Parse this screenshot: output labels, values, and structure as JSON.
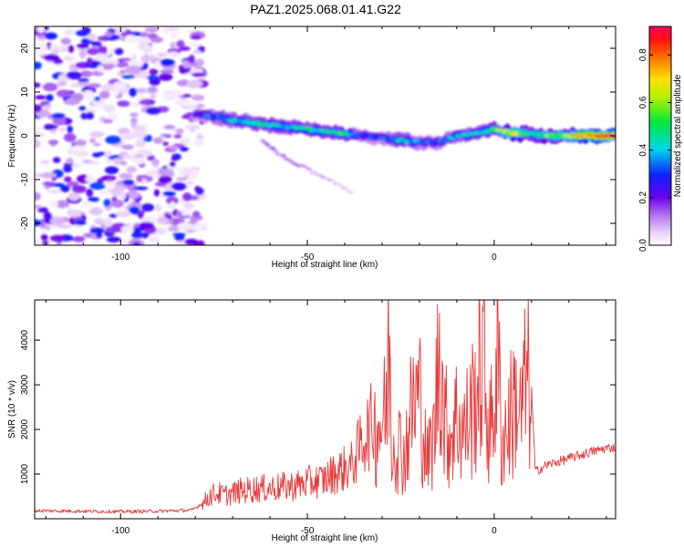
{
  "chart_data": [
    {
      "type": "heatmap",
      "title": "PAZ1.2025.068.01.41.G22",
      "xlabel": "Height of straight line (km)",
      "ylabel": "Frequency (Hz)",
      "xlim": [
        -123,
        32.5
      ],
      "ylim": [
        -25,
        25
      ],
      "xticks": [
        -100,
        -50,
        0
      ],
      "xtick_labels": [
        "-100",
        "-50",
        "0"
      ],
      "yticks": [
        -20,
        -10,
        0,
        10,
        20
      ],
      "ytick_labels": [
        "-20",
        "-10",
        "0",
        "10",
        "20"
      ],
      "colorbar": {
        "label": "Normalized spectral amplitude",
        "range": [
          0,
          0.92
        ],
        "ticks": [
          0.0,
          0.2,
          0.4,
          0.6,
          0.8
        ],
        "tick_labels": [
          "0.0",
          "0.2",
          "0.4",
          "0.6",
          "0.8"
        ],
        "colormap": "rainbow (white-purple-blue-cyan-green-yellow-red-magenta)"
      },
      "noise_region_x": [
        -123,
        -78
      ],
      "main_signal_ridge": {
        "x": [
          -80,
          -75,
          -70,
          -65,
          -60,
          -55,
          -50,
          -45,
          -40,
          -35,
          -30,
          -25,
          -20,
          -15,
          -10,
          -5,
          0,
          5,
          10,
          15,
          20,
          25,
          30,
          32
        ],
        "y": [
          5,
          4.5,
          3.5,
          3,
          2.5,
          2,
          1.5,
          1,
          0.5,
          0,
          -0.5,
          -1,
          -1.5,
          -1.5,
          0,
          0.5,
          1.5,
          0.5,
          0.5,
          0,
          0,
          0,
          0,
          0
        ],
        "amplitude": [
          0.25,
          0.35,
          0.4,
          0.42,
          0.45,
          0.45,
          0.45,
          0.45,
          0.5,
          0.3,
          0.3,
          0.45,
          0.35,
          0.3,
          0.4,
          0.4,
          0.5,
          0.7,
          0.5,
          0.6,
          0.6,
          0.85,
          0.9,
          0.9
        ]
      },
      "secondary_branch": {
        "x": [
          -62,
          -58,
          -54,
          -50,
          -46,
          -42,
          -38
        ],
        "y": [
          -1,
          -4,
          -6,
          -7.5,
          -9.5,
          -11,
          -13
        ],
        "amplitude": [
          0.15,
          0.15,
          0.12,
          0.1,
          0.1,
          0.08,
          0.06
        ]
      }
    },
    {
      "type": "line",
      "xlabel": "Height of straight line (km)",
      "ylabel": "SNR (10 * v/v)",
      "xlim": [
        -123,
        32.5
      ],
      "ylim": [
        0,
        4900
      ],
      "xticks": [
        -100,
        -50,
        0
      ],
      "xtick_labels": [
        "-100",
        "-50",
        "0"
      ],
      "yticks": [
        1000,
        2000,
        3000,
        4000
      ],
      "ytick_labels": [
        "1000",
        "2000",
        "3000",
        "4000"
      ],
      "color": "#e8393a",
      "x": [
        -123,
        -110,
        -100,
        -90,
        -81,
        -78,
        -76,
        -74,
        -72,
        -68,
        -64,
        -60,
        -56,
        -52,
        -50,
        -46,
        -42,
        -38,
        -35,
        -32,
        -30,
        -29,
        -28,
        -27.5,
        -26,
        -24,
        -22,
        -20,
        -18,
        -16,
        -14.5,
        -13.5,
        -12,
        -10,
        -8,
        -6,
        -4,
        -3,
        -2,
        -1,
        0,
        1,
        2,
        4,
        6,
        7,
        8,
        9,
        10,
        11,
        14,
        18,
        22,
        26,
        30,
        32.5
      ],
      "y": [
        180,
        170,
        160,
        170,
        190,
        350,
        550,
        600,
        550,
        650,
        700,
        720,
        750,
        800,
        850,
        900,
        1100,
        1250,
        1900,
        2300,
        2500,
        2600,
        4650,
        2000,
        2000,
        1600,
        2800,
        3200,
        1400,
        2200,
        4800,
        2600,
        2100,
        2600,
        2200,
        2800,
        3500,
        4100,
        2800,
        2200,
        3000,
        4250,
        1900,
        2500,
        3100,
        2500,
        3250,
        3500,
        2900,
        1050,
        1200,
        1300,
        1400,
        1500,
        1580,
        1600
      ]
    }
  ]
}
